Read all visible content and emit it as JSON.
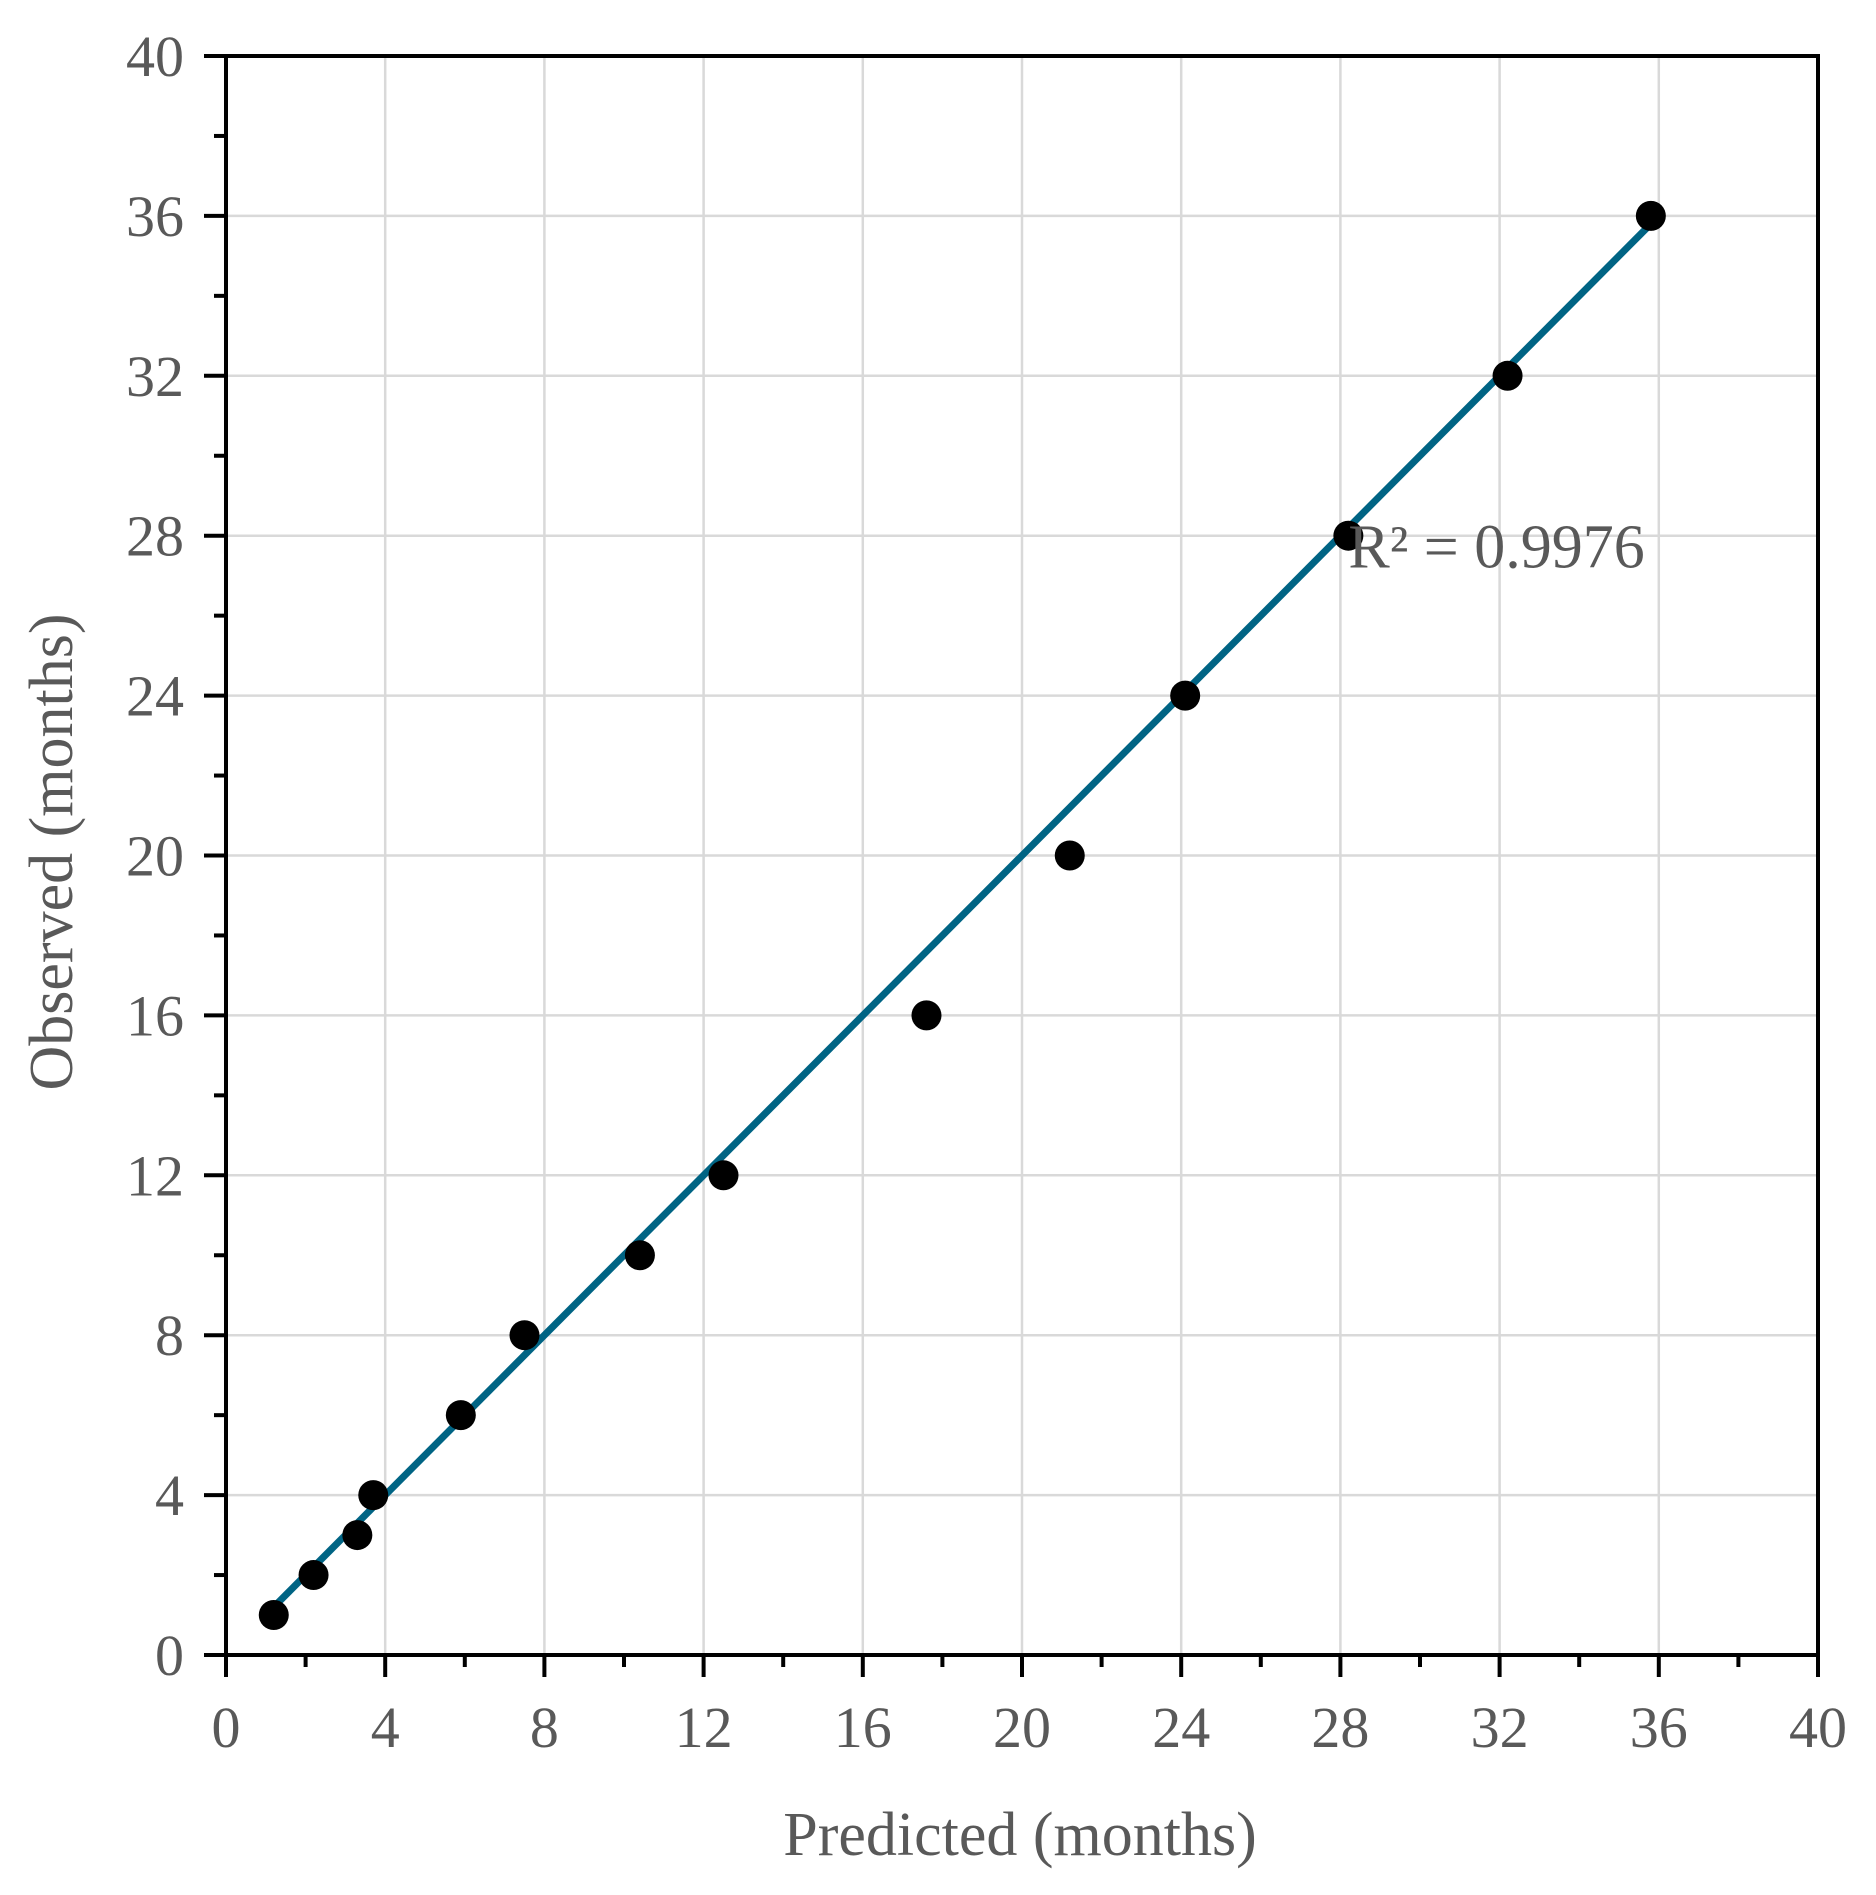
{
  "chart_data": {
    "type": "scatter",
    "xlabel": "Predicted (months)",
    "ylabel": "Observed (months)",
    "xlim": [
      0,
      40
    ],
    "ylim": [
      0,
      40
    ],
    "x_ticks": [
      "0",
      "4",
      "8",
      "12",
      "16",
      "20",
      "24",
      "28",
      "32",
      "36",
      "40"
    ],
    "y_ticks": [
      "0",
      "4",
      "8",
      "12",
      "16",
      "20",
      "24",
      "28",
      "32",
      "36",
      "40"
    ],
    "grid": true,
    "series": [
      {
        "points": [
          {
            "x": 1.2,
            "y": 1
          },
          {
            "x": 2.2,
            "y": 2
          },
          {
            "x": 3.3,
            "y": 3
          },
          {
            "x": 3.7,
            "y": 4
          },
          {
            "x": 5.9,
            "y": 6
          },
          {
            "x": 7.5,
            "y": 8
          },
          {
            "x": 10.4,
            "y": 10
          },
          {
            "x": 12.5,
            "y": 12
          },
          {
            "x": 17.6,
            "y": 16
          },
          {
            "x": 21.2,
            "y": 20
          },
          {
            "x": 24.1,
            "y": 24
          },
          {
            "x": 28.2,
            "y": 28
          },
          {
            "x": 32.2,
            "y": 32
          },
          {
            "x": 35.8,
            "y": 36
          }
        ],
        "marker_color": "#000000"
      }
    ],
    "trendline": {
      "type": "linear",
      "from": {
        "x": 1.2,
        "y": 1.2
      },
      "to": {
        "x": 35.8,
        "y": 35.8
      },
      "color": "#006484"
    },
    "annotations": [
      {
        "text": "R² = 0.9976",
        "x": 28.2,
        "y": 27.2
      }
    ],
    "colors": {
      "grid": "#d9d9d9",
      "axis": "#000000",
      "text": "#595959"
    }
  }
}
